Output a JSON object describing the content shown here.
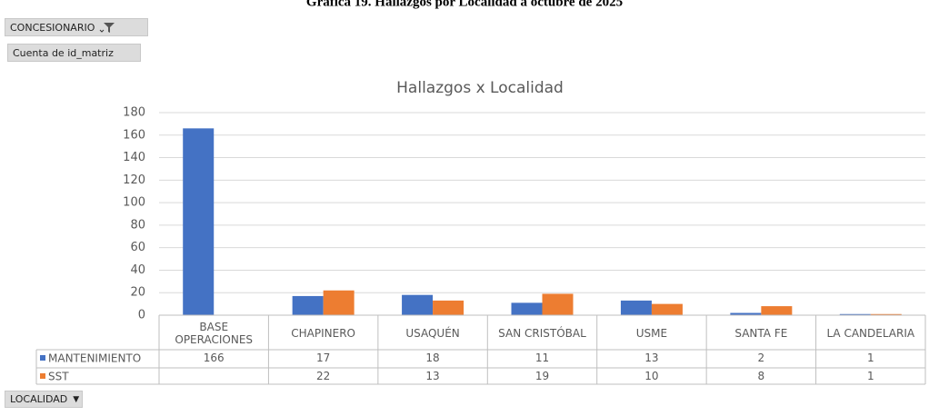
{
  "page_title": "Gráfica 19. Hallazgos por Localidad a octubre de 2025",
  "filter_button": "CONCESIONARIO",
  "value_button": "Cuenta de id_matriz",
  "axis_button": "LOCALIDAD",
  "chart_data": {
    "type": "bar",
    "title": "Hallazgos x Localidad",
    "categories": [
      "BASE OPERACIONES",
      "CHAPINERO",
      "USAQUÉN",
      "SAN CRISTÓBAL",
      "USME",
      "SANTA FE",
      "LA CANDELARIA"
    ],
    "series": [
      {
        "name": "MANTENIMIENTO",
        "color": "#4472c4",
        "values": [
          166,
          17,
          18,
          11,
          13,
          2,
          1
        ]
      },
      {
        "name": "SST",
        "color": "#ed7d31",
        "values": [
          null,
          22,
          13,
          19,
          10,
          8,
          1
        ]
      }
    ],
    "ylim": [
      0,
      180
    ],
    "yticks": [
      0,
      20,
      40,
      60,
      80,
      100,
      120,
      140,
      160,
      180
    ],
    "grid": true,
    "data_table": true
  }
}
